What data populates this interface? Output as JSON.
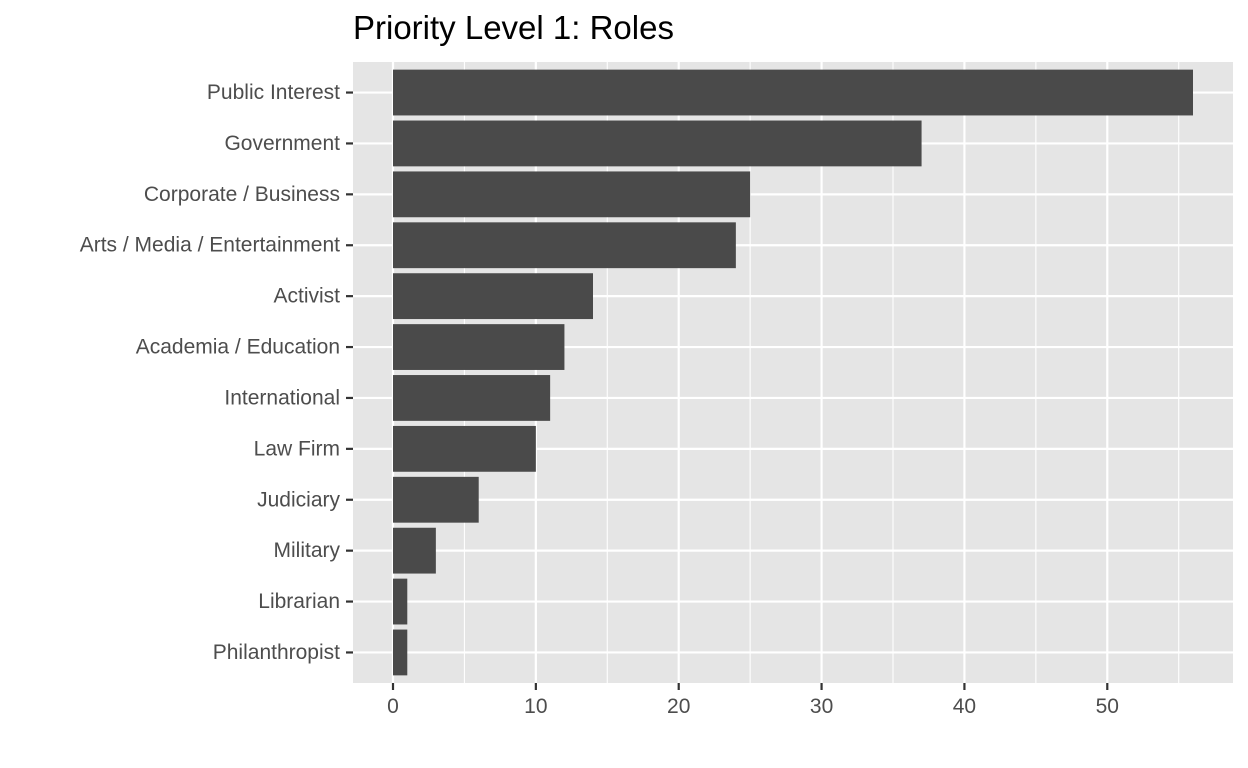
{
  "chart_data": {
    "type": "bar",
    "orientation": "horizontal",
    "title": "Priority Level 1: Roles",
    "xlabel": "",
    "ylabel": "",
    "categories": [
      "Public Interest",
      "Government",
      "Corporate / Business",
      "Arts / Media / Entertainment",
      "Activist",
      "Academia / Education",
      "International",
      "Law Firm",
      "Judiciary",
      "Military",
      "Librarian",
      "Philanthropist"
    ],
    "values": [
      56,
      37,
      25,
      24,
      14,
      12,
      11,
      10,
      6,
      3,
      1,
      1
    ],
    "xlim": [
      -2.8,
      58.8
    ],
    "xticks": [
      0,
      10,
      20,
      30,
      40,
      50
    ],
    "grid": true,
    "legend": "none",
    "colors": {
      "bar": "#4a4a4a",
      "panel": "#e5e5e5",
      "gridline": "#ffffff",
      "text": "#4d4d4d"
    }
  }
}
